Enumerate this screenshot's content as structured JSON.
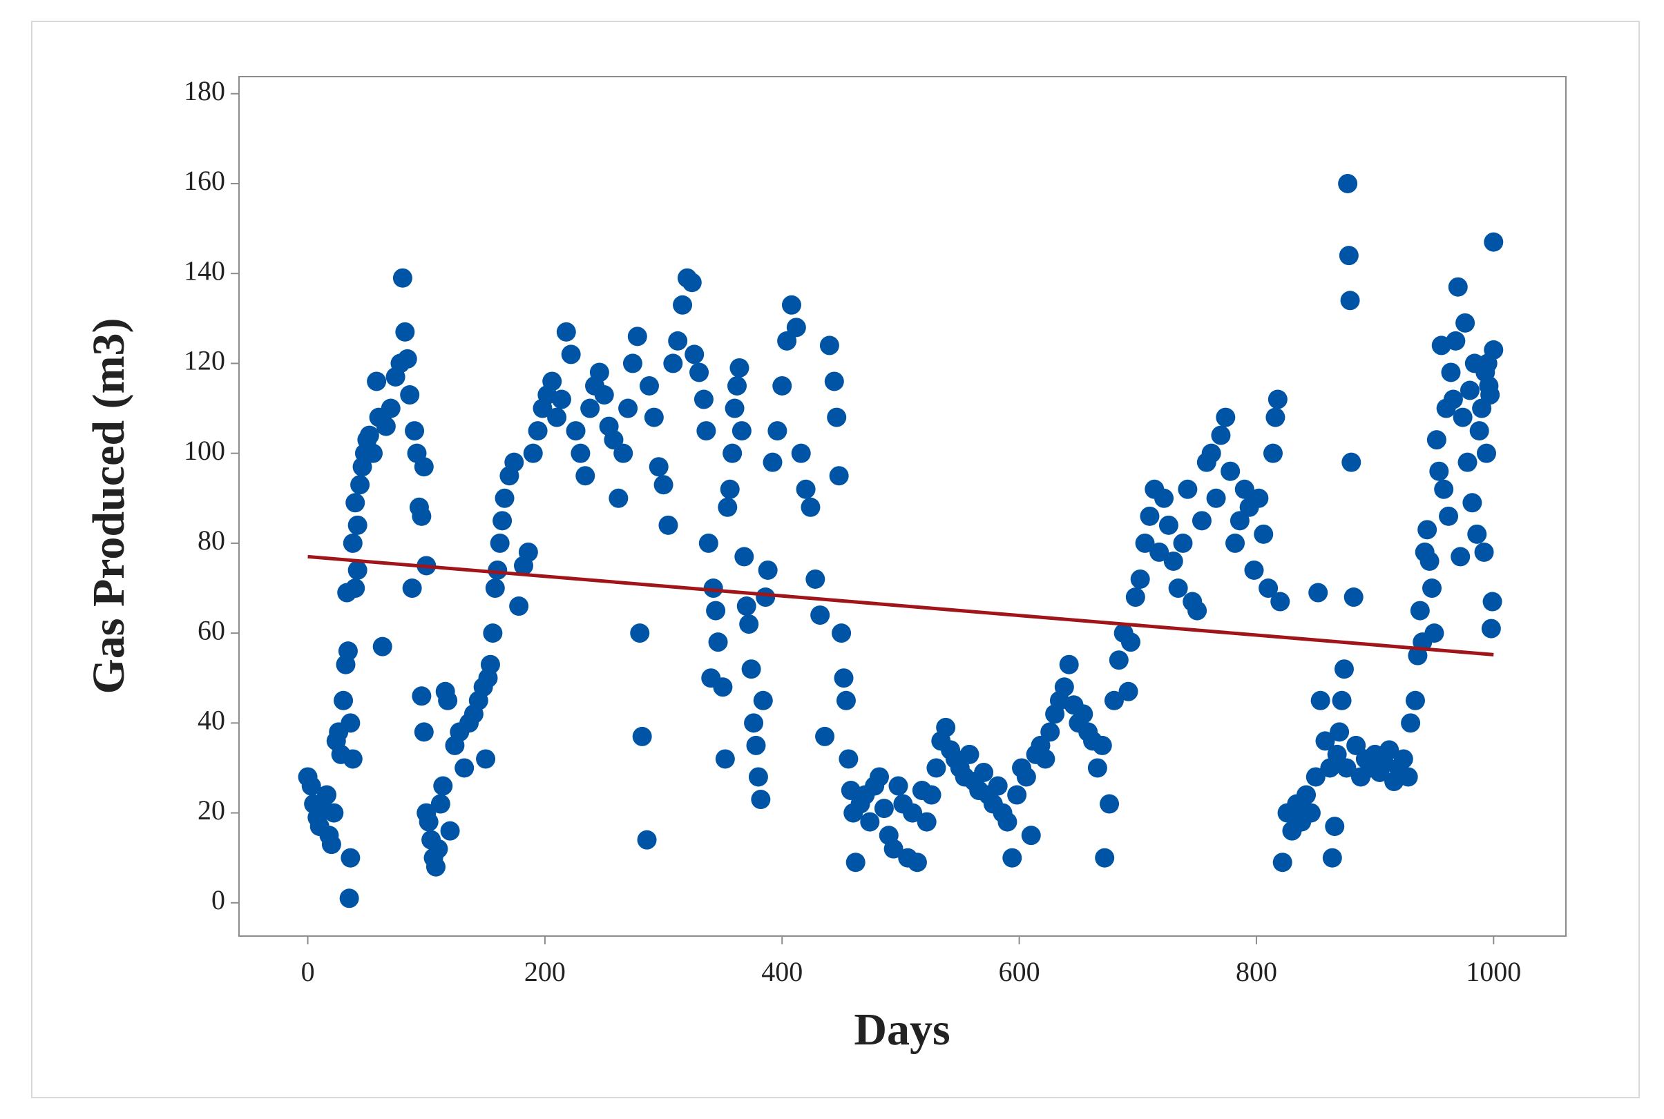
{
  "chart_data": {
    "type": "scatter",
    "x_label": "Days",
    "y_label": "Gas Produced (m3)",
    "xlim": [
      -58,
      1061
    ],
    "ylim": [
      -7.4,
      183.8
    ],
    "xticks": [
      0,
      200,
      400,
      600,
      800,
      1000
    ],
    "yticks": [
      0,
      20,
      40,
      60,
      80,
      100,
      120,
      140,
      160,
      180
    ],
    "series": [
      {
        "color": "#0054a6",
        "x": [
          0,
          3,
          5,
          8,
          10,
          13,
          16,
          18,
          20,
          22,
          24,
          26,
          28,
          30,
          32,
          34,
          36,
          38,
          40,
          42,
          33,
          35,
          36,
          38,
          40,
          42,
          44,
          46,
          48,
          50,
          52,
          55,
          58,
          60,
          63,
          66,
          70,
          74,
          78,
          80,
          82,
          84,
          86,
          88,
          90,
          92,
          94,
          96,
          98,
          100,
          96,
          98,
          100,
          102,
          104,
          106,
          108,
          110,
          112,
          114,
          116,
          118,
          120,
          124,
          128,
          132,
          136,
          140,
          144,
          148,
          150,
          152,
          154,
          156,
          158,
          160,
          162,
          164,
          166,
          170,
          174,
          178,
          182,
          186,
          190,
          194,
          198,
          202,
          206,
          210,
          214,
          218,
          222,
          226,
          230,
          234,
          238,
          242,
          246,
          250,
          254,
          258,
          262,
          266,
          270,
          274,
          278,
          280,
          282,
          286,
          288,
          292,
          296,
          300,
          304,
          308,
          312,
          316,
          320,
          324,
          326,
          330,
          334,
          336,
          338,
          340,
          342,
          344,
          346,
          350,
          352,
          354,
          356,
          358,
          360,
          362,
          364,
          366,
          368,
          370,
          372,
          374,
          376,
          378,
          380,
          382,
          384,
          386,
          388,
          392,
          396,
          400,
          404,
          408,
          412,
          416,
          420,
          424,
          428,
          432,
          436,
          440,
          444,
          446,
          448,
          450,
          452,
          454,
          456,
          458,
          460,
          462,
          466,
          470,
          474,
          478,
          482,
          486,
          490,
          494,
          498,
          502,
          506,
          510,
          514,
          518,
          522,
          526,
          530,
          534,
          538,
          542,
          546,
          550,
          554,
          558,
          562,
          566,
          570,
          574,
          578,
          582,
          586,
          590,
          594,
          598,
          602,
          606,
          610,
          614,
          618,
          622,
          626,
          630,
          634,
          638,
          642,
          646,
          650,
          654,
          658,
          662,
          666,
          670,
          672,
          676,
          680,
          684,
          688,
          692,
          694,
          698,
          702,
          706,
          710,
          714,
          718,
          722,
          726,
          730,
          734,
          738,
          742,
          746,
          750,
          754,
          758,
          762,
          766,
          770,
          774,
          778,
          782,
          786,
          790,
          794,
          798,
          802,
          806,
          810,
          814,
          816,
          818,
          820,
          822,
          826,
          830,
          834,
          838,
          842,
          846,
          850,
          852,
          854,
          858,
          862,
          864,
          866,
          868,
          870,
          872,
          874,
          876,
          877,
          878,
          879,
          880,
          882,
          884,
          888,
          892,
          896,
          900,
          904,
          908,
          912,
          916,
          920,
          924,
          928,
          930,
          934,
          936,
          938,
          940,
          942,
          944,
          946,
          948,
          950,
          952,
          954,
          956,
          958,
          960,
          962,
          964,
          966,
          968,
          970,
          972,
          974,
          976,
          978,
          980,
          982,
          984,
          986,
          988,
          990,
          992,
          994,
          996,
          998,
          1000,
          1000,
          999,
          997,
          995,
          993
        ],
        "values": [
          28,
          26,
          22,
          19,
          17,
          21,
          24,
          15,
          13,
          20,
          36,
          38,
          33,
          45,
          53,
          56,
          40,
          32,
          70,
          74,
          69,
          1,
          10,
          80,
          89,
          84,
          93,
          97,
          100,
          103,
          104,
          100,
          116,
          108,
          57,
          106,
          110,
          117,
          120,
          139,
          127,
          121,
          113,
          70,
          105,
          100,
          88,
          86,
          97,
          75,
          46,
          38,
          20,
          18,
          14,
          10,
          8,
          12,
          22,
          26,
          47,
          45,
          16,
          35,
          38,
          30,
          40,
          42,
          45,
          48,
          32,
          50,
          53,
          60,
          70,
          74,
          80,
          85,
          90,
          95,
          98,
          66,
          75,
          78,
          100,
          105,
          110,
          113,
          116,
          108,
          112,
          127,
          122,
          105,
          100,
          95,
          110,
          115,
          118,
          113,
          106,
          103,
          90,
          100,
          110,
          120,
          126,
          60,
          37,
          14,
          115,
          108,
          97,
          93,
          84,
          120,
          125,
          133,
          139,
          138,
          122,
          118,
          112,
          105,
          80,
          50,
          70,
          65,
          58,
          48,
          32,
          88,
          92,
          100,
          110,
          115,
          119,
          105,
          77,
          66,
          62,
          52,
          40,
          35,
          28,
          23,
          45,
          68,
          74,
          98,
          105,
          115,
          125,
          133,
          128,
          100,
          92,
          88,
          72,
          64,
          37,
          124,
          116,
          108,
          95,
          60,
          50,
          45,
          32,
          25,
          20,
          9,
          22,
          24,
          18,
          26,
          28,
          21,
          15,
          12,
          26,
          22,
          10,
          20,
          9,
          25,
          18,
          24,
          30,
          36,
          39,
          34,
          32,
          30,
          28,
          33,
          27,
          25,
          29,
          24,
          22,
          26,
          20,
          18,
          10,
          24,
          30,
          28,
          15,
          33,
          35,
          32,
          38,
          42,
          45,
          48,
          53,
          44,
          40,
          42,
          38,
          36,
          30,
          35,
          10,
          22,
          45,
          54,
          60,
          47,
          58,
          68,
          72,
          80,
          86,
          92,
          78,
          90,
          84,
          76,
          70,
          80,
          92,
          67,
          65,
          85,
          98,
          100,
          90,
          104,
          108,
          96,
          80,
          85,
          92,
          88,
          74,
          90,
          82,
          70,
          100,
          108,
          112,
          67,
          9,
          20,
          16,
          22,
          18,
          24,
          20,
          28,
          69,
          45,
          36,
          30,
          10,
          17,
          33,
          38,
          45,
          52,
          30,
          160,
          144,
          134,
          98,
          68,
          35,
          28,
          32,
          30,
          33,
          29,
          31,
          34,
          27,
          30,
          32,
          28,
          40,
          45,
          55,
          65,
          58,
          78,
          83,
          76,
          70,
          60,
          103,
          96,
          124,
          92,
          110,
          86,
          118,
          112,
          125,
          137,
          77,
          108,
          129,
          98,
          114,
          89,
          120,
          82,
          105,
          110,
          78,
          100,
          115,
          61,
          147,
          123,
          67,
          113,
          120,
          118
        ]
      }
    ],
    "trend": {
      "type": "line",
      "color": "#a0151a",
      "x": [
        0,
        1000
      ],
      "values": [
        77,
        55.2
      ]
    }
  }
}
